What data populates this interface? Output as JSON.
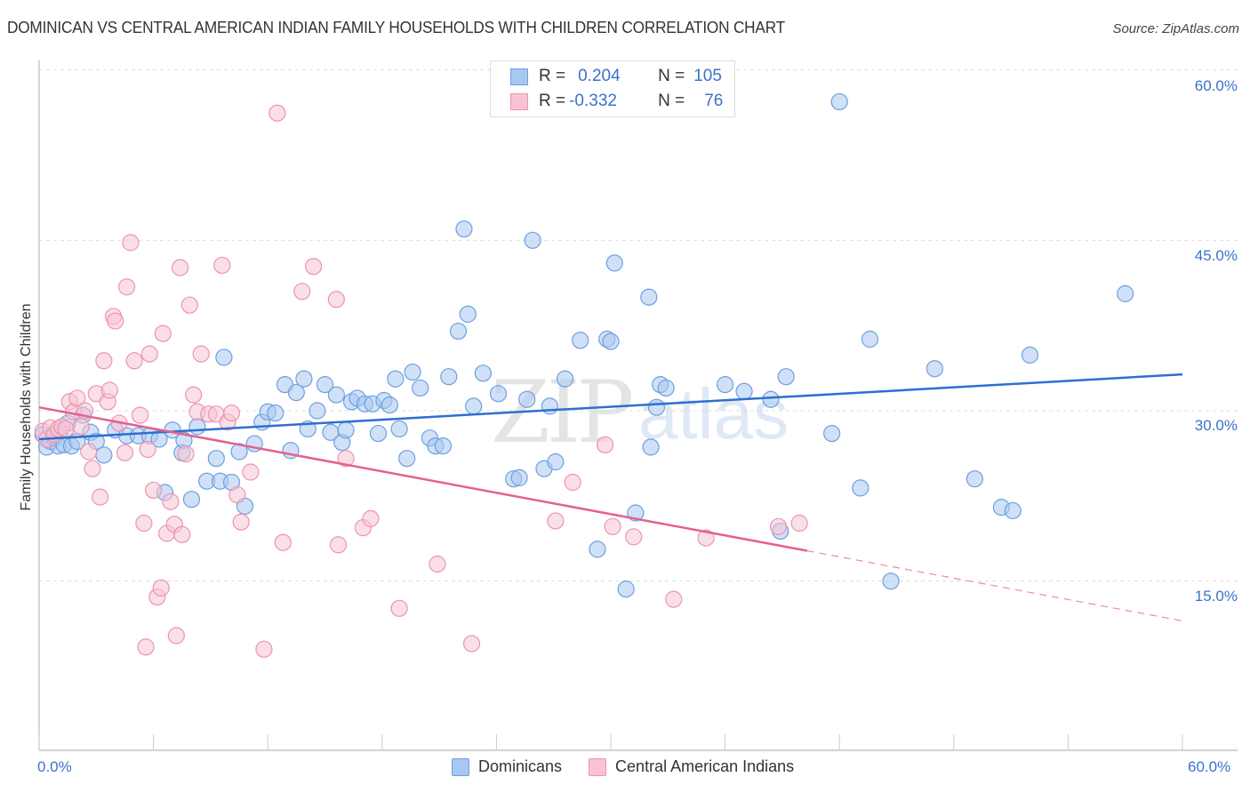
{
  "header": {
    "title": "DOMINICAN VS CENTRAL AMERICAN INDIAN FAMILY HOUSEHOLDS WITH CHILDREN CORRELATION CHART",
    "source": "Source: ZipAtlas.com"
  },
  "watermark": {
    "zip": "ZIP",
    "atlas": "atlas"
  },
  "legend": {
    "rows": [
      {
        "r_label": "R =",
        "r_value": "0.204",
        "n_label": "N =",
        "n_value": "105",
        "color": "#a9c8f0",
        "border": "#6c9fe0"
      },
      {
        "r_label": "R =",
        "r_value": "-0.332",
        "n_label": "N =",
        "n_value": "76",
        "color": "#f8c4d4",
        "border": "#ec93b0"
      }
    ]
  },
  "chart_data": {
    "type": "scatter",
    "title": "DOMINICAN VS CENTRAL AMERICAN INDIAN FAMILY HOUSEHOLDS WITH CHILDREN CORRELATION CHART",
    "xlabel": "",
    "ylabel": "Family Households with Children",
    "xlim": [
      0,
      60
    ],
    "ylim": [
      0,
      62
    ],
    "x_tick_labels": [
      "0.0%",
      "60.0%"
    ],
    "y_ticks": [
      15,
      30,
      45,
      60
    ],
    "y_tick_labels": [
      "15.0%",
      "30.0%",
      "45.0%",
      "60.0%"
    ],
    "grid": true,
    "legend_position": "bottom-center",
    "series": [
      {
        "name": "Dominicans",
        "color": "#6c9fe0",
        "fill": "#a9c8f0",
        "r": 0.204,
        "n": 105,
        "trend": {
          "x0": 0,
          "y0": 27.5,
          "x1": 60,
          "y1": 33.2,
          "dashed_from": null
        },
        "points": [
          [
            0.2,
            27.9
          ],
          [
            0.4,
            26.8
          ],
          [
            0.6,
            27.3
          ],
          [
            0.8,
            27.6
          ],
          [
            1.0,
            26.9
          ],
          [
            1.1,
            28.2
          ],
          [
            1.3,
            27.0
          ],
          [
            1.5,
            28.9
          ],
          [
            1.7,
            26.9
          ],
          [
            2.0,
            27.3
          ],
          [
            2.3,
            29.6
          ],
          [
            2.7,
            28.1
          ],
          [
            3.0,
            27.3
          ],
          [
            3.4,
            26.1
          ],
          [
            4.0,
            28.3
          ],
          [
            4.6,
            27.8
          ],
          [
            5.2,
            27.8
          ],
          [
            5.8,
            27.8
          ],
          [
            6.3,
            27.5
          ],
          [
            6.6,
            22.8
          ],
          [
            7.0,
            28.3
          ],
          [
            7.5,
            26.3
          ],
          [
            7.6,
            27.4
          ],
          [
            8.0,
            22.2
          ],
          [
            8.3,
            28.6
          ],
          [
            8.8,
            23.8
          ],
          [
            9.3,
            25.8
          ],
          [
            9.5,
            23.8
          ],
          [
            9.7,
            34.7
          ],
          [
            10.1,
            23.7
          ],
          [
            10.5,
            26.4
          ],
          [
            10.8,
            21.6
          ],
          [
            11.3,
            27.1
          ],
          [
            11.7,
            29.0
          ],
          [
            12.0,
            29.9
          ],
          [
            12.4,
            29.8
          ],
          [
            12.9,
            32.3
          ],
          [
            13.2,
            26.5
          ],
          [
            13.5,
            31.6
          ],
          [
            13.9,
            32.8
          ],
          [
            14.1,
            28.4
          ],
          [
            14.6,
            30.0
          ],
          [
            15.0,
            32.3
          ],
          [
            15.3,
            28.1
          ],
          [
            15.6,
            31.4
          ],
          [
            15.9,
            27.2
          ],
          [
            16.1,
            28.3
          ],
          [
            16.4,
            30.8
          ],
          [
            16.7,
            31.1
          ],
          [
            17.1,
            30.6
          ],
          [
            17.5,
            30.6
          ],
          [
            17.8,
            28.0
          ],
          [
            18.1,
            30.9
          ],
          [
            18.4,
            30.5
          ],
          [
            18.7,
            32.8
          ],
          [
            18.9,
            28.4
          ],
          [
            19.3,
            25.8
          ],
          [
            19.6,
            33.4
          ],
          [
            20.0,
            32.0
          ],
          [
            20.5,
            27.6
          ],
          [
            20.8,
            26.9
          ],
          [
            21.2,
            26.9
          ],
          [
            21.5,
            33.0
          ],
          [
            22.0,
            37.0
          ],
          [
            22.5,
            38.5
          ],
          [
            22.8,
            30.4
          ],
          [
            23.3,
            33.3
          ],
          [
            24.1,
            31.5
          ],
          [
            24.9,
            24.0
          ],
          [
            25.2,
            24.1
          ],
          [
            25.6,
            31.0
          ],
          [
            25.9,
            45.0
          ],
          [
            26.5,
            24.9
          ],
          [
            26.8,
            30.4
          ],
          [
            27.1,
            25.5
          ],
          [
            27.6,
            32.8
          ],
          [
            28.4,
            36.2
          ],
          [
            29.3,
            17.8
          ],
          [
            29.8,
            36.3
          ],
          [
            30.0,
            36.1
          ],
          [
            30.2,
            43.0
          ],
          [
            30.8,
            14.3
          ],
          [
            31.3,
            21.0
          ],
          [
            32.0,
            40.0
          ],
          [
            32.1,
            26.8
          ],
          [
            32.4,
            30.3
          ],
          [
            32.6,
            32.3
          ],
          [
            32.9,
            32.0
          ],
          [
            36.0,
            32.3
          ],
          [
            37.0,
            31.7
          ],
          [
            38.4,
            31.0
          ],
          [
            38.9,
            19.4
          ],
          [
            39.2,
            33.0
          ],
          [
            41.6,
            28.0
          ],
          [
            42.0,
            57.2
          ],
          [
            43.1,
            23.2
          ],
          [
            43.6,
            36.3
          ],
          [
            44.7,
            15.0
          ],
          [
            47.0,
            33.7
          ],
          [
            49.1,
            24.0
          ],
          [
            50.5,
            21.5
          ],
          [
            51.1,
            21.2
          ],
          [
            52.0,
            34.9
          ],
          [
            57.0,
            40.3
          ],
          [
            22.3,
            46.0
          ]
        ]
      },
      {
        "name": "Central American Indians",
        "color": "#ec93b0",
        "fill": "#f8c4d4",
        "r": -0.332,
        "n": 76,
        "trend": {
          "x0": 0,
          "y0": 30.3,
          "x1": 60,
          "y1": 11.5,
          "dashed_from": 40.3
        },
        "points": [
          [
            0.2,
            28.2
          ],
          [
            0.4,
            27.5
          ],
          [
            0.6,
            28.5
          ],
          [
            0.8,
            27.9
          ],
          [
            1.0,
            28.4
          ],
          [
            1.2,
            28.6
          ],
          [
            1.4,
            28.4
          ],
          [
            1.6,
            30.8
          ],
          [
            1.8,
            29.9
          ],
          [
            2.0,
            31.1
          ],
          [
            2.2,
            28.6
          ],
          [
            2.4,
            30.0
          ],
          [
            2.6,
            26.4
          ],
          [
            2.8,
            24.9
          ],
          [
            3.0,
            31.5
          ],
          [
            3.2,
            22.4
          ],
          [
            3.4,
            34.4
          ],
          [
            3.6,
            30.8
          ],
          [
            3.7,
            31.8
          ],
          [
            3.9,
            38.3
          ],
          [
            4.0,
            37.9
          ],
          [
            4.2,
            28.9
          ],
          [
            4.5,
            26.3
          ],
          [
            4.6,
            40.9
          ],
          [
            4.8,
            44.8
          ],
          [
            5.0,
            34.4
          ],
          [
            5.3,
            29.6
          ],
          [
            5.5,
            20.1
          ],
          [
            5.6,
            9.2
          ],
          [
            5.7,
            26.6
          ],
          [
            5.8,
            35.0
          ],
          [
            6.0,
            23.0
          ],
          [
            6.2,
            13.6
          ],
          [
            6.4,
            14.4
          ],
          [
            6.5,
            36.8
          ],
          [
            6.7,
            19.2
          ],
          [
            6.9,
            22.0
          ],
          [
            7.1,
            20.0
          ],
          [
            7.2,
            10.2
          ],
          [
            7.4,
            42.6
          ],
          [
            7.5,
            19.1
          ],
          [
            7.7,
            26.2
          ],
          [
            7.9,
            39.3
          ],
          [
            8.1,
            31.4
          ],
          [
            8.3,
            29.9
          ],
          [
            8.5,
            35.0
          ],
          [
            8.9,
            29.7
          ],
          [
            9.3,
            29.7
          ],
          [
            9.6,
            42.8
          ],
          [
            9.9,
            29.0
          ],
          [
            10.1,
            29.8
          ],
          [
            10.4,
            22.6
          ],
          [
            10.6,
            20.2
          ],
          [
            11.1,
            24.6
          ],
          [
            11.8,
            9.0
          ],
          [
            12.5,
            56.2
          ],
          [
            12.8,
            18.4
          ],
          [
            13.8,
            40.5
          ],
          [
            14.4,
            42.7
          ],
          [
            15.6,
            39.8
          ],
          [
            15.7,
            18.2
          ],
          [
            16.1,
            25.8
          ],
          [
            17.0,
            19.7
          ],
          [
            17.4,
            20.5
          ],
          [
            18.9,
            12.6
          ],
          [
            20.9,
            16.5
          ],
          [
            22.7,
            9.5
          ],
          [
            27.1,
            20.3
          ],
          [
            28.0,
            23.7
          ],
          [
            29.7,
            27.0
          ],
          [
            30.1,
            19.8
          ],
          [
            31.2,
            18.9
          ],
          [
            33.3,
            13.4
          ],
          [
            35.0,
            18.8
          ],
          [
            38.8,
            19.8
          ],
          [
            39.9,
            20.1
          ]
        ]
      }
    ]
  }
}
